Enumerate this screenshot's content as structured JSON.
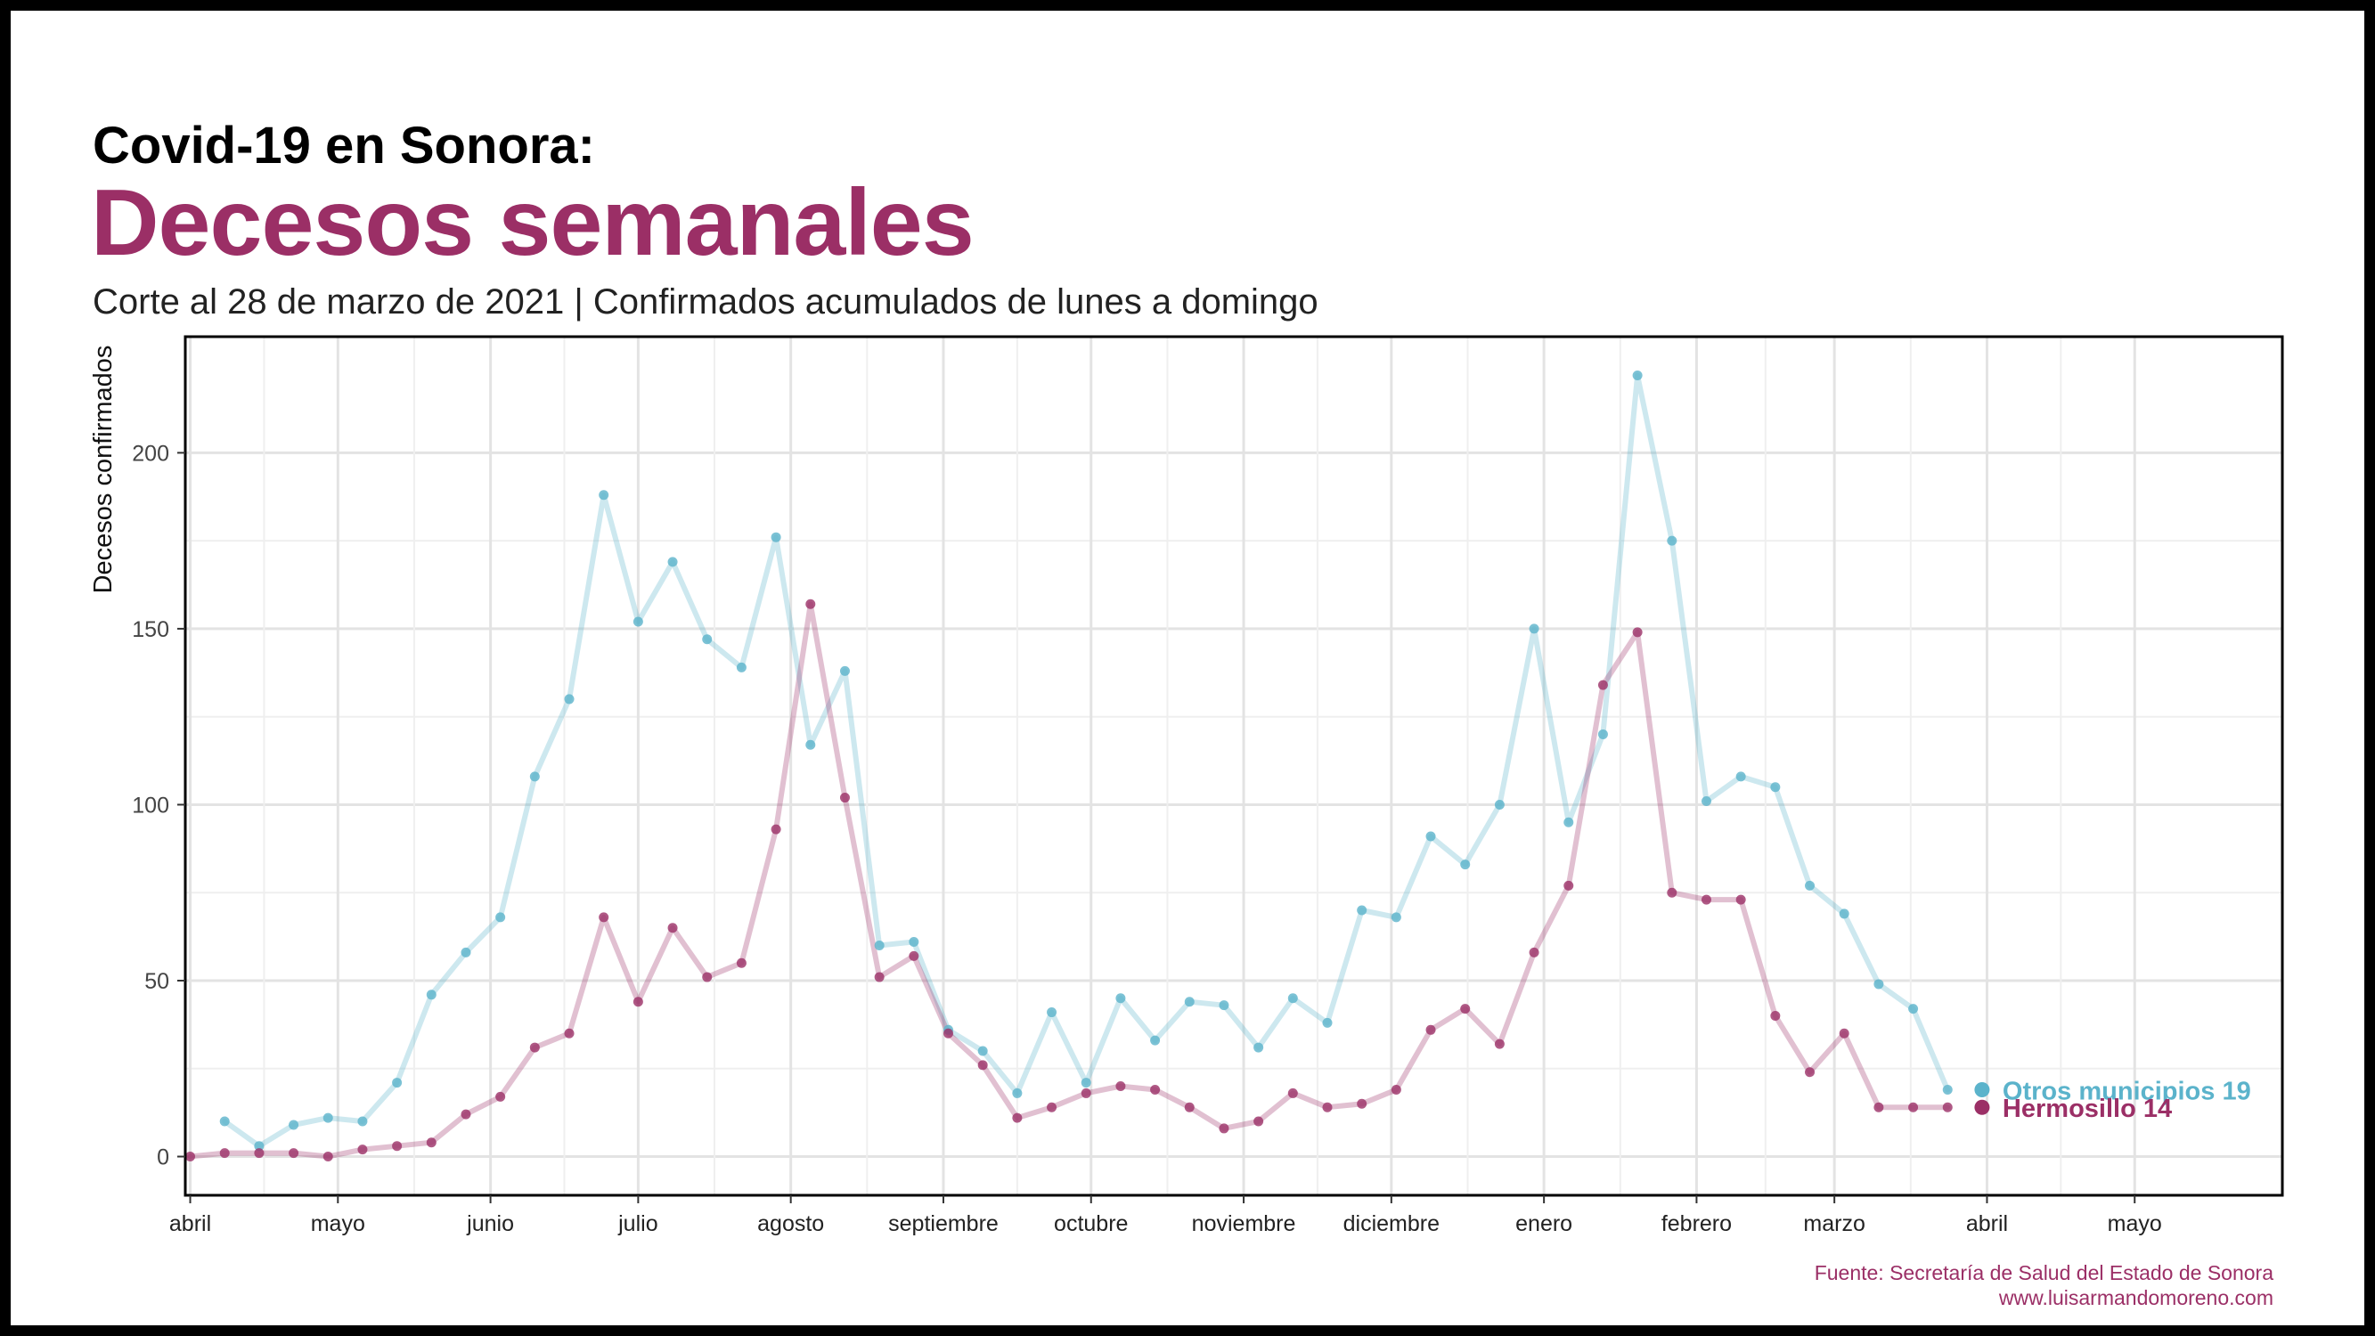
{
  "header": {
    "title_line1": "Covid-19 en Sonora:",
    "title_line2": "Decesos semanales",
    "subtitle": "Corte al 28 de marzo de 2021 | Confirmados acumulados de lunes a domingo"
  },
  "footer": {
    "source": "Fuente: Secretaría de Salud del Estado de Sonora",
    "website": "www.luisarmandomoreno.com"
  },
  "colors": {
    "otros": "#5bb3cb",
    "hermosillo": "#9b2f66",
    "title_accent": "#9b2f66"
  },
  "chart_data": {
    "type": "line",
    "ylabel": "Decesos confirmados",
    "xlabel": "",
    "ylim": [
      -11,
      233
    ],
    "y_ticks": [
      0,
      50,
      100,
      150,
      200
    ],
    "x_range": [
      "2020-03-31",
      "2021-05-31"
    ],
    "x_ticks": [
      {
        "date": "2020-04-01",
        "label": "abril"
      },
      {
        "date": "2020-05-01",
        "label": "mayo"
      },
      {
        "date": "2020-06-01",
        "label": "junio"
      },
      {
        "date": "2020-07-01",
        "label": "julio"
      },
      {
        "date": "2020-08-01",
        "label": "agosto"
      },
      {
        "date": "2020-09-01",
        "label": "septiembre"
      },
      {
        "date": "2020-10-01",
        "label": "octubre"
      },
      {
        "date": "2020-11-01",
        "label": "noviembre"
      },
      {
        "date": "2020-12-01",
        "label": "diciembre"
      },
      {
        "date": "2021-01-01",
        "label": "enero"
      },
      {
        "date": "2021-02-01",
        "label": "febrero"
      },
      {
        "date": "2021-03-01",
        "label": "marzo"
      },
      {
        "date": "2021-04-01",
        "label": "abril"
      },
      {
        "date": "2021-05-01",
        "label": "mayo"
      }
    ],
    "grid": true,
    "legend": "direct labels at line ends",
    "series": [
      {
        "name": "Otros municipios",
        "end_label": "Otros municipios 19",
        "color": "#5bb3cb",
        "dates": [
          "2020-04-08",
          "2020-04-15",
          "2020-04-22",
          "2020-04-29",
          "2020-05-06",
          "2020-05-13",
          "2020-05-20",
          "2020-05-27",
          "2020-06-03",
          "2020-06-10",
          "2020-06-17",
          "2020-06-24",
          "2020-07-01",
          "2020-07-08",
          "2020-07-15",
          "2020-07-22",
          "2020-07-29",
          "2020-08-05",
          "2020-08-12",
          "2020-08-19",
          "2020-08-26",
          "2020-09-02",
          "2020-09-09",
          "2020-09-16",
          "2020-09-23",
          "2020-09-30",
          "2020-10-07",
          "2020-10-14",
          "2020-10-21",
          "2020-10-28",
          "2020-11-04",
          "2020-11-11",
          "2020-11-18",
          "2020-11-25",
          "2020-12-02",
          "2020-12-09",
          "2020-12-16",
          "2020-12-23",
          "2020-12-30",
          "2021-01-06",
          "2021-01-13",
          "2021-01-20",
          "2021-01-27",
          "2021-02-03",
          "2021-02-10",
          "2021-02-17",
          "2021-02-24",
          "2021-03-03",
          "2021-03-10",
          "2021-03-17",
          "2021-03-24",
          "2021-03-31"
        ],
        "values": [
          10,
          3,
          9,
          11,
          10,
          21,
          46,
          58,
          68,
          108,
          130,
          188,
          152,
          169,
          147,
          139,
          176,
          117,
          138,
          60,
          61,
          36,
          30,
          18,
          41,
          21,
          45,
          33,
          44,
          43,
          31,
          45,
          38,
          70,
          68,
          91,
          83,
          100,
          150,
          95,
          120,
          222,
          175,
          101,
          108,
          105,
          77,
          69,
          49,
          42,
          19,
          19
        ]
      },
      {
        "name": "Hermosillo",
        "end_label": "Hermosillo 14",
        "color": "#9b2f66",
        "dates": [
          "2020-04-01",
          "2020-04-08",
          "2020-04-15",
          "2020-04-22",
          "2020-04-29",
          "2020-05-06",
          "2020-05-13",
          "2020-05-20",
          "2020-05-27",
          "2020-06-03",
          "2020-06-10",
          "2020-06-17",
          "2020-06-24",
          "2020-07-01",
          "2020-07-08",
          "2020-07-15",
          "2020-07-22",
          "2020-07-29",
          "2020-08-05",
          "2020-08-12",
          "2020-08-19",
          "2020-08-26",
          "2020-09-02",
          "2020-09-09",
          "2020-09-16",
          "2020-09-23",
          "2020-09-30",
          "2020-10-07",
          "2020-10-14",
          "2020-10-21",
          "2020-10-28",
          "2020-11-04",
          "2020-11-11",
          "2020-11-18",
          "2020-11-25",
          "2020-12-02",
          "2020-12-09",
          "2020-12-16",
          "2020-12-23",
          "2020-12-30",
          "2021-01-06",
          "2021-01-13",
          "2021-01-20",
          "2021-01-27",
          "2021-02-03",
          "2021-02-10",
          "2021-02-17",
          "2021-02-24",
          "2021-03-03",
          "2021-03-10",
          "2021-03-17",
          "2021-03-24",
          "2021-03-31"
        ],
        "values": [
          0,
          1,
          1,
          1,
          0,
          2,
          3,
          4,
          12,
          17,
          31,
          35,
          68,
          44,
          65,
          51,
          55,
          93,
          157,
          102,
          51,
          57,
          35,
          26,
          11,
          14,
          18,
          20,
          19,
          14,
          8,
          10,
          18,
          14,
          15,
          19,
          36,
          42,
          32,
          58,
          77,
          134,
          149,
          75,
          73,
          73,
          40,
          24,
          35,
          14,
          14,
          14,
          14
        ]
      }
    ]
  }
}
